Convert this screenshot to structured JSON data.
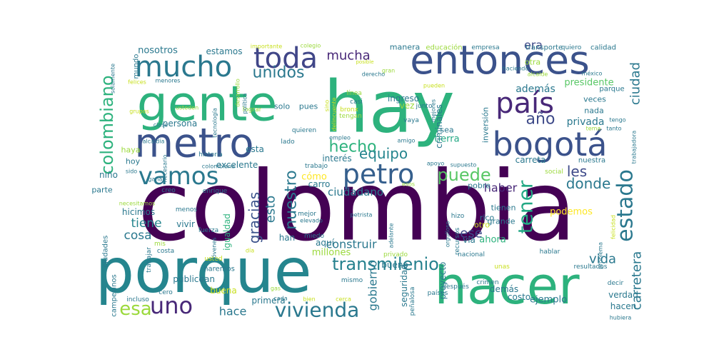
{
  "words": [
    {
      "text": "colombia",
      "color": "#440154"
    },
    {
      "text": "porque",
      "color": "#25858e"
    },
    {
      "text": "hacer",
      "color": "#2db27d"
    },
    {
      "text": "hay",
      "color": "#2db27d"
    },
    {
      "text": "gente",
      "color": "#2db27d"
    },
    {
      "text": "entonces",
      "color": "#3b528b"
    },
    {
      "text": "metro",
      "color": "#3b528b"
    },
    {
      "text": "bogotá",
      "color": "#3b528b"
    },
    {
      "text": "país",
      "color": "#482878"
    },
    {
      "text": "mucho",
      "color": "#2a788e"
    },
    {
      "text": "toda",
      "color": "#404688"
    },
    {
      "text": "petro",
      "color": "#355f8d"
    },
    {
      "text": "vamos",
      "color": "#2a788e"
    },
    {
      "text": "uno",
      "color": "#482878"
    },
    {
      "text": "vivienda",
      "color": "#2a788e"
    },
    {
      "text": "transmilenio",
      "color": "#26818e"
    },
    {
      "text": "esa",
      "color": "#9bd93c"
    },
    {
      "text": "puede",
      "color": "#58c765"
    },
    {
      "text": "estado",
      "color": "#2a788e"
    },
    {
      "text": "tener",
      "color": "#22a884"
    },
    {
      "text": "colombiano",
      "color": "#2db27d"
    },
    {
      "text": "hecho",
      "color": "#2db27d"
    },
    {
      "text": "año",
      "color": "#3e4a89"
    },
    {
      "text": "equipo",
      "color": "#25858e"
    },
    {
      "text": "les",
      "color": "#3e4a89"
    },
    {
      "text": "donde",
      "color": "#2a788e"
    },
    {
      "text": "unidos",
      "color": "#2a788e"
    },
    {
      "text": "mucha",
      "color": "#482878"
    },
    {
      "text": "era",
      "color": "#3e4a89"
    },
    {
      "text": "nuestro",
      "color": "#2a788e"
    },
    {
      "text": "esto",
      "color": "#2a788e"
    },
    {
      "text": "gracias",
      "color": "#3b528b"
    },
    {
      "text": "carretera",
      "color": "#2a788e"
    },
    {
      "text": "ciudad",
      "color": "#2a788e"
    },
    {
      "text": "vida",
      "color": "#2a788e"
    },
    {
      "text": "hace",
      "color": "#2a788e"
    },
    {
      "text": "tiene",
      "color": "#25858e"
    },
    {
      "text": "cosa",
      "color": "#2a788e"
    },
    {
      "text": "ese",
      "color": "#3e4a89"
    },
    {
      "text": "haber",
      "color": "#482878"
    },
    {
      "text": "construir",
      "color": "#2a788e"
    },
    {
      "text": "gobierno",
      "color": "#2a788e"
    },
    {
      "text": "privada",
      "color": "#2a788e"
    },
    {
      "text": "ciudadano",
      "color": "#2a788e"
    },
    {
      "text": "además",
      "color": "#2a788e"
    },
    {
      "text": "presidente",
      "color": "#58c765"
    },
    {
      "text": "estamos",
      "color": "#2a788e"
    },
    {
      "text": "nosotros",
      "color": "#2a788e"
    },
    {
      "text": "excelente",
      "color": "#2a788e"
    },
    {
      "text": "ingreso",
      "color": "#2a788e"
    },
    {
      "text": "hicimos",
      "color": "#2a788e"
    },
    {
      "text": "niño",
      "color": "#2a788e"
    },
    {
      "text": "persona",
      "color": "#2a788e"
    },
    {
      "text": "parte",
      "color": "#2a788e"
    },
    {
      "text": "ahora",
      "color": "#2db27d"
    },
    {
      "text": "podemos",
      "color": "#fde725"
    },
    {
      "text": "ejemplo",
      "color": "#2a788e"
    },
    {
      "text": "verdad",
      "color": "#2a788e"
    },
    {
      "text": "hacen",
      "color": "#2a788e"
    },
    {
      "text": "tierra",
      "color": "#22a884"
    },
    {
      "text": "carreta",
      "color": "#2a788e"
    },
    {
      "text": "millones",
      "color": "#9bd93c"
    },
    {
      "text": "costo",
      "color": "#2a788e"
    },
    {
      "text": "primera",
      "color": "#2a788e"
    },
    {
      "text": "buena",
      "color": "#c8e020"
    },
    {
      "text": "público",
      "color": "#2a788e"
    },
    {
      "text": "vivir",
      "color": "#2a788e"
    },
    {
      "text": "van",
      "color": "#2a788e"
    },
    {
      "text": "igualdad",
      "color": "#2db27d"
    },
    {
      "text": "seguridad",
      "color": "#2a788e"
    },
    {
      "text": "bueno",
      "color": "#2a788e"
    },
    {
      "text": "demás",
      "color": "#2a788e"
    },
    {
      "text": "proyecto",
      "color": "#2a788e"
    },
    {
      "text": "grande",
      "color": "#2a788e"
    },
    {
      "text": "tienen",
      "color": "#2a788e"
    },
    {
      "text": "rico",
      "color": "#2a788e"
    },
    {
      "text": "otro",
      "color": "#c8e020"
    },
    {
      "text": "vía",
      "color": "#2a788e"
    },
    {
      "text": "solo",
      "color": "#2a788e"
    },
    {
      "text": "pues",
      "color": "#2a788e"
    },
    {
      "text": "vez",
      "color": "#9bd93c"
    },
    {
      "text": "criminales",
      "color": "#2a788e"
    },
    {
      "text": "inversión",
      "color": "#2a788e"
    },
    {
      "text": "sea",
      "color": "#2a788e"
    },
    {
      "text": "manera",
      "color": "#2a788e"
    },
    {
      "text": "educación",
      "color": "#9bd93c"
    },
    {
      "text": "empresa",
      "color": "#2a788e"
    },
    {
      "text": "transporte",
      "color": "#2a788e"
    },
    {
      "text": "quiero",
      "color": "#2a788e"
    },
    {
      "text": "calidad",
      "color": "#2a788e"
    },
    {
      "text": "cómo",
      "color": "#fde725"
    },
    {
      "text": "carro",
      "color": "#2a788e"
    },
    {
      "text": "interés",
      "color": "#2a788e"
    },
    {
      "text": "aquí",
      "color": "#2a788e"
    },
    {
      "text": "han",
      "color": "#2a788e"
    },
    {
      "text": "esta",
      "color": "#2a788e"
    },
    {
      "text": "hoy",
      "color": "#2a788e"
    },
    {
      "text": "haya",
      "color": "#9bd93c"
    },
    {
      "text": "pobre",
      "color": "#2a788e"
    },
    {
      "text": "veces",
      "color": "#2a788e"
    },
    {
      "text": "nada",
      "color": "#2a788e"
    },
    {
      "text": "otra",
      "color": "#9bd93c"
    },
    {
      "text": "parque",
      "color": "#2a788e"
    },
    {
      "text": "nuestra",
      "color": "#2a788e"
    },
    {
      "text": "social",
      "color": "#9bd93c"
    },
    {
      "text": "mundo",
      "color": "#2a788e"
    },
    {
      "text": "ciudades",
      "color": "#2a788e"
    },
    {
      "text": "campesinos",
      "color": "#2a788e"
    },
    {
      "text": "incluso",
      "color": "#2a788e"
    },
    {
      "text": "cero",
      "color": "#2a788e"
    },
    {
      "text": "trabajar",
      "color": "#2a788e"
    },
    {
      "text": "mis",
      "color": "#9bd93c"
    },
    {
      "text": "costa",
      "color": "#2a788e"
    },
    {
      "text": "usted",
      "color": "#c8e020"
    },
    {
      "text": "haremos",
      "color": "#2a788e"
    },
    {
      "text": "menos",
      "color": "#2a788e"
    },
    {
      "text": "fuerza",
      "color": "#2a788e"
    },
    {
      "text": "creo",
      "color": "#2a788e"
    },
    {
      "text": "enrique",
      "color": "#2a788e"
    },
    {
      "text": "historia",
      "color": "#2a788e"
    },
    {
      "text": "colombiana",
      "color": "#2a788e"
    },
    {
      "text": "trabajo",
      "color": "#2a788e"
    },
    {
      "text": "lado",
      "color": "#2a788e"
    },
    {
      "text": "quieren",
      "color": "#2a788e"
    },
    {
      "text": "vaya",
      "color": "#2a788e"
    },
    {
      "text": "junto",
      "color": "#2a788e"
    },
    {
      "text": "casi",
      "color": "#2a788e"
    },
    {
      "text": "bronx",
      "color": "#c8e020"
    },
    {
      "text": "línea",
      "color": "#9bd93c"
    },
    {
      "text": "tengan",
      "color": "#9bd93c"
    },
    {
      "text": "lograr",
      "color": "#9bd93c"
    },
    {
      "text": "mejor",
      "color": "#2a788e"
    },
    {
      "text": "elevado",
      "color": "#2a788e"
    },
    {
      "text": "miedo",
      "color": "#2a788e"
    },
    {
      "text": "petrista",
      "color": "#2a788e"
    },
    {
      "text": "hizo",
      "color": "#2a788e"
    },
    {
      "text": "orgulloso",
      "color": "#2a788e"
    },
    {
      "text": "recursos",
      "color": "#2a788e"
    },
    {
      "text": "gas",
      "color": "#9bd93c"
    },
    {
      "text": "cada",
      "color": "#2a788e"
    },
    {
      "text": "bien",
      "color": "#c8e020"
    },
    {
      "text": "cerca",
      "color": "#c8e020"
    },
    {
      "text": "mismo",
      "color": "#2a788e"
    },
    {
      "text": "privado",
      "color": "#9bd93c"
    },
    {
      "text": "nacional",
      "color": "#2a788e"
    },
    {
      "text": "hablar",
      "color": "#2a788e"
    },
    {
      "text": "unas",
      "color": "#c8e020"
    },
    {
      "text": "resultados",
      "color": "#2a788e"
    },
    {
      "text": "decir",
      "color": "#2a788e"
    },
    {
      "text": "crimen",
      "color": "#2a788e"
    },
    {
      "text": "después",
      "color": "#2a788e"
    },
    {
      "text": "países",
      "color": "#2a788e"
    },
    {
      "text": "peñalosa",
      "color": "#2a788e"
    },
    {
      "text": "hubiera",
      "color": "#2a788e"
    },
    {
      "text": "felicidad",
      "color": "#c8e020"
    },
    {
      "text": "problema",
      "color": "#2a788e"
    },
    {
      "text": "trabajadora",
      "color": "#2a788e"
    },
    {
      "text": "tengo",
      "color": "#2a788e"
    },
    {
      "text": "tanto",
      "color": "#2a788e"
    },
    {
      "text": "tema",
      "color": "#9bd93c"
    },
    {
      "text": "méxico",
      "color": "#2a788e"
    },
    {
      "text": "pueden",
      "color": "#c8e020"
    },
    {
      "text": "mejores",
      "color": "#2a788e"
    },
    {
      "text": "haciendo",
      "color": "#2a788e"
    },
    {
      "text": "alcalde",
      "color": "#9bd93c"
    },
    {
      "text": "gran",
      "color": "#9bd93c"
    },
    {
      "text": "derecho",
      "color": "#2a788e"
    },
    {
      "text": "posible",
      "color": "#c8e020"
    },
    {
      "text": "colegio",
      "color": "#9bd93c"
    },
    {
      "text": "importante",
      "color": "#c8e020"
    },
    {
      "text": "desarrollo",
      "color": "#9bd93c"
    },
    {
      "text": "política",
      "color": "#2a788e"
    },
    {
      "text": "tecnología",
      "color": "#2a788e"
    },
    {
      "text": "usteden",
      "color": "#9bd93c"
    },
    {
      "text": "menores",
      "color": "#2a788e"
    },
    {
      "text": "felices",
      "color": "#c8e020"
    },
    {
      "text": "solamente",
      "color": "#2a788e"
    },
    {
      "text": "grupos",
      "color": "#c8e020"
    },
    {
      "text": "clase",
      "color": "#2a788e"
    },
    {
      "text": "alcaldía",
      "color": "#2a788e"
    },
    {
      "text": "sido",
      "color": "#2a788e"
    },
    {
      "text": "ganar",
      "color": "#2a788e"
    },
    {
      "text": "necesario",
      "color": "#2a788e"
    },
    {
      "text": "necesitamos",
      "color": "#9bd93c"
    },
    {
      "text": "amigo",
      "color": "#2a788e"
    },
    {
      "text": "apoyo",
      "color": "#2a788e"
    },
    {
      "text": "supuesto",
      "color": "#2a788e"
    },
    {
      "text": "empleo",
      "color": "#2a788e"
    },
    {
      "text": "esos",
      "color": "#9bd93c"
    },
    {
      "text": "sino",
      "color": "#c8e020"
    },
    {
      "text": "delincuente",
      "color": "#c8e020"
    },
    {
      "text": "adelante",
      "color": "#2a788e"
    },
    {
      "text": "día",
      "color": "#c8e020"
    },
    {
      "text": "jóvenes",
      "color": "#2a788e"
    }
  ]
}
